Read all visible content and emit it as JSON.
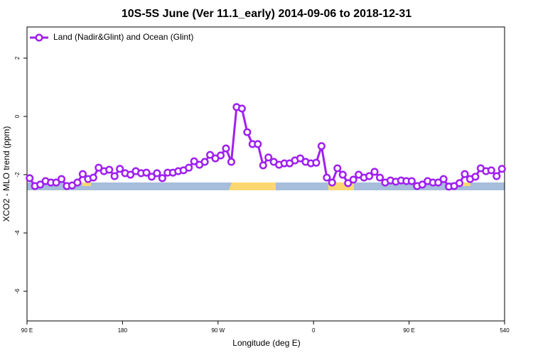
{
  "chart_data": {
    "type": "line",
    "title": "10S-5S June (Ver 11.1_early)   2014-09-06 to 2018-12-31",
    "x_label": "Longitude (deg E)",
    "y_label": "XCO2 - MLO trend (ppm)",
    "xlim": [
      90,
      540
    ],
    "xticks": [
      {
        "value": 90,
        "label": "90 E"
      },
      180,
      {
        "value": 270,
        "label": "90 W"
      },
      {
        "value": 360,
        "label": "0"
      },
      {
        "value": 450,
        "label": "90 E"
      },
      540
    ],
    "ylim": [
      -7.02,
      3.07
    ],
    "yticks": [
      2,
      0,
      -2,
      -4,
      -6
    ],
    "legend": "top-left",
    "x": [
      92.5,
      97.5,
      102.5,
      107.5,
      112.5,
      117.5,
      122.5,
      127.5,
      132.5,
      137.5,
      142.5,
      147.5,
      152.5,
      157.5,
      162.5,
      167.5,
      172.5,
      177.5,
      182.5,
      187.5,
      192.5,
      197.5,
      202.5,
      207.5,
      212.5,
      217.5,
      222.5,
      227.5,
      232.5,
      237.5,
      242.5,
      247.5,
      252.5,
      257.5,
      262.5,
      267.5,
      272.5,
      277.5,
      282.5,
      287.5,
      292.5,
      297.5,
      302.5,
      307.5,
      312.5,
      317.5,
      322.5,
      327.5,
      332.5,
      337.5,
      342.5,
      347.5,
      352.5,
      357.5,
      362.5,
      367.5,
      372.5,
      377.5,
      382.5,
      387.5,
      392.5,
      397.5,
      402.5,
      407.5,
      412.5,
      417.5,
      422.5,
      427.5,
      432.5,
      437.5,
      442.5,
      447.5,
      452.5,
      457.5,
      462.5,
      467.5,
      472.5,
      477.5,
      482.5,
      487.5,
      492.5,
      497.5,
      502.5,
      507.5,
      512.5,
      517.5,
      522.5,
      527.5,
      532.5,
      537.5
    ],
    "series": [
      {
        "name": "Land (Nadir&Glint) and Ocean (Glint)",
        "color": "#a020f0",
        "values": [
          -2.12,
          -2.39,
          -2.34,
          -2.22,
          -2.27,
          -2.27,
          -2.15,
          -2.39,
          -2.37,
          -2.27,
          -1.98,
          -2.15,
          -2.1,
          -1.76,
          -1.88,
          -1.83,
          -2.05,
          -1.8,
          -1.95,
          -2.0,
          -1.88,
          -1.95,
          -1.93,
          -2.07,
          -1.95,
          -2.12,
          -1.93,
          -1.93,
          -1.88,
          -1.85,
          -1.76,
          -1.54,
          -1.66,
          -1.56,
          -1.32,
          -1.44,
          -1.34,
          -1.1,
          -1.56,
          0.32,
          0.27,
          -0.54,
          -0.95,
          -0.95,
          -1.68,
          -1.41,
          -1.56,
          -1.66,
          -1.61,
          -1.61,
          -1.51,
          -1.44,
          -1.56,
          -1.61,
          -1.59,
          -1.02,
          -2.1,
          -2.27,
          -1.78,
          -2.0,
          -2.29,
          -2.17,
          -2.0,
          -2.1,
          -2.05,
          -1.9,
          -2.1,
          -2.27,
          -2.2,
          -2.24,
          -2.2,
          -2.22,
          -2.22,
          -2.39,
          -2.34,
          -2.22,
          -2.27,
          -2.27,
          -2.15,
          -2.41,
          -2.39,
          -2.29,
          -1.98,
          -2.15,
          -2.07,
          -1.78,
          -1.88,
          -1.85,
          -2.05,
          -1.8
        ]
      }
    ]
  }
}
